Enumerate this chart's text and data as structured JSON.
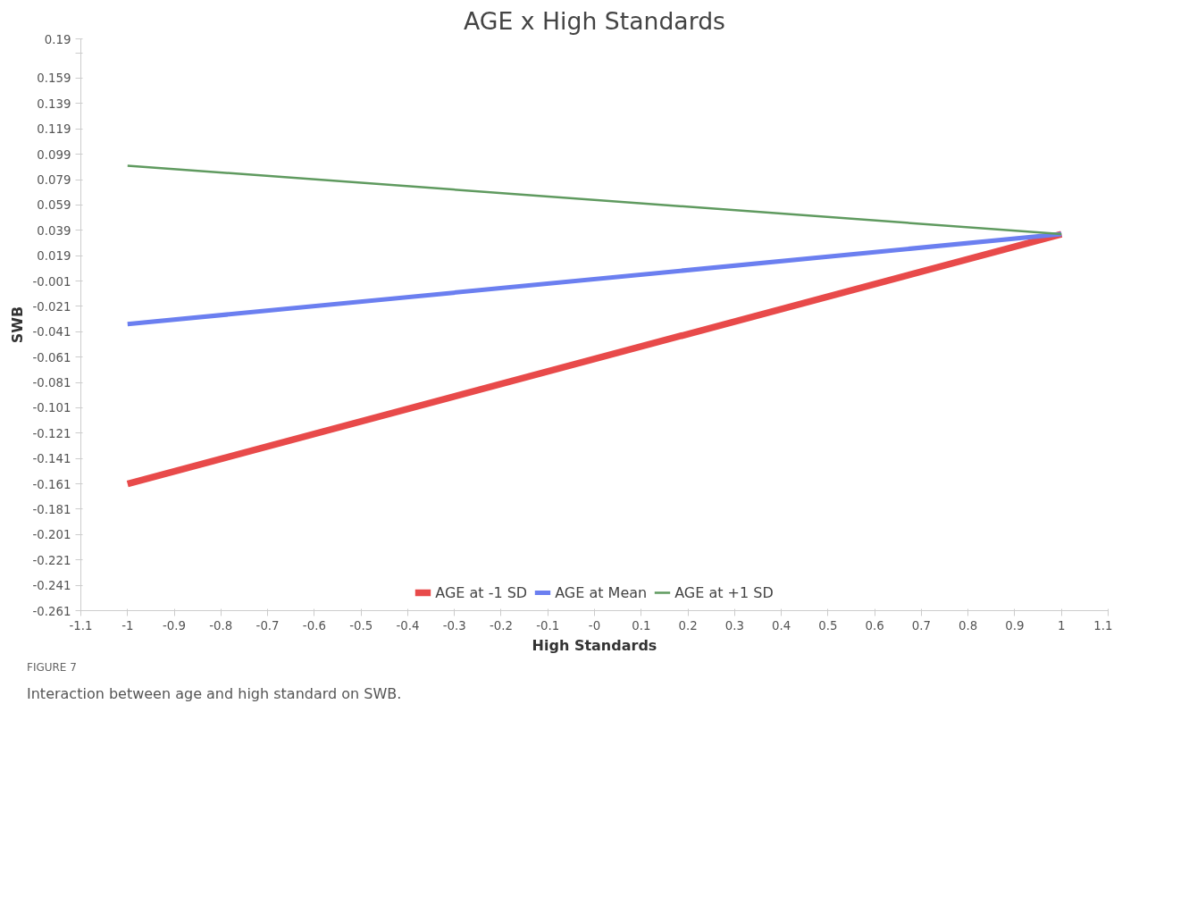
{
  "chart_data": {
    "type": "line",
    "title": "AGE x High Standards",
    "xlabel": "High Standards",
    "ylabel": "SWB",
    "x": [
      -1,
      1
    ],
    "series": [
      {
        "name": "AGE at -1 SD",
        "color": "#e84a4a",
        "values": [
          -0.161,
          0.036
        ]
      },
      {
        "name": "AGE at Mean",
        "color": "#6b7ff0",
        "values": [
          -0.035,
          0.036
        ]
      },
      {
        "name": "AGE at +1 SD",
        "color": "#5f9a5f",
        "values": [
          0.09,
          0.036
        ]
      }
    ],
    "xlim": [
      -1.1,
      1.1
    ],
    "xticks": [
      -1.1,
      -1,
      -0.9,
      -0.8,
      -0.7,
      -0.6,
      -0.5,
      -0.4,
      -0.3,
      -0.2,
      -0.1,
      {
        "value": 0,
        "label": "-0"
      },
      0.1,
      0.2,
      0.3,
      0.4,
      0.5,
      0.6,
      0.7,
      0.8,
      0.9,
      1,
      1.1
    ],
    "ylim": [
      -0.261,
      0.19
    ],
    "yticks": [
      -0.261,
      -0.241,
      -0.221,
      -0.201,
      -0.181,
      -0.161,
      -0.141,
      -0.121,
      -0.101,
      -0.081,
      -0.061,
      -0.041,
      -0.021,
      -0.001,
      0.019,
      0.039,
      0.059,
      0.079,
      0.099,
      0.119,
      0.139,
      0.159,
      {
        "value": 0.179,
        "label": null
      },
      0.19
    ],
    "grid": false,
    "legend": "bottom",
    "marker": "none",
    "line_style": "solid",
    "annotations": [
      "FIGURE 7",
      "Interaction between age and high standard on SWB."
    ]
  }
}
